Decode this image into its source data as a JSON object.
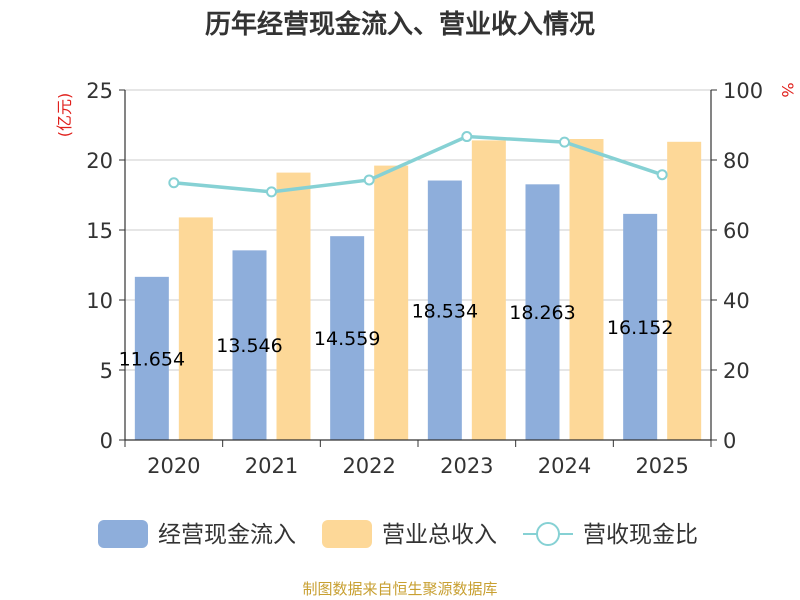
{
  "chart_data": {
    "type": "bar",
    "title": "历年经营现金流入、营业收入情况",
    "categories": [
      "2020",
      "2021",
      "2022",
      "2023",
      "2024",
      "2025"
    ],
    "series": [
      {
        "name": "经营现金流入",
        "kind": "bar",
        "axis": "left",
        "color": "#8eaedb",
        "values": [
          11.654,
          13.546,
          14.559,
          18.534,
          18.263,
          16.152
        ],
        "labels": [
          "11.654",
          "13.546",
          "14.559",
          "18.534",
          "18.263",
          "16.152"
        ]
      },
      {
        "name": "营业总收入",
        "kind": "bar",
        "axis": "left",
        "color": "#fdd898",
        "values": [
          15.9,
          19.1,
          19.6,
          21.4,
          21.5,
          21.3
        ]
      },
      {
        "name": "营收现金比",
        "kind": "line",
        "axis": "right",
        "color": "#86d1d4",
        "values": [
          73.5,
          70.9,
          74.3,
          86.7,
          85.1,
          75.8
        ]
      }
    ],
    "y_left": {
      "unit": "(亿元)",
      "min": 0,
      "max": 25,
      "ticks": [
        0,
        5,
        10,
        15,
        20,
        25
      ]
    },
    "y_right": {
      "unit": "%",
      "min": 0,
      "max": 100,
      "ticks": [
        0,
        20,
        40,
        60,
        80,
        100
      ]
    },
    "grid": true,
    "legend_position": "bottom"
  },
  "source": "制图数据来自恒生聚源数据库"
}
